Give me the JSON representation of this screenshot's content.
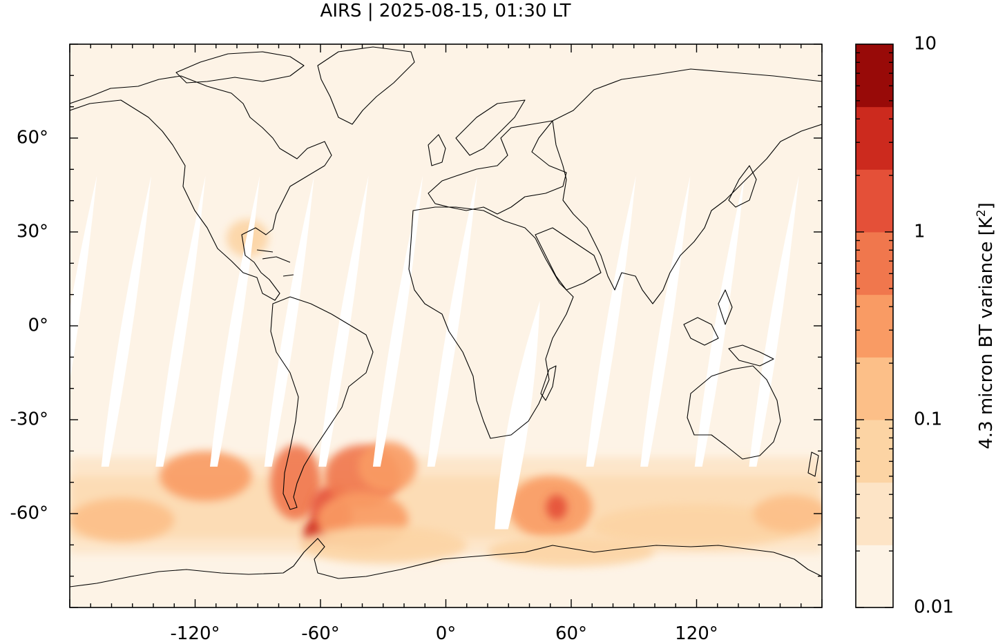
{
  "title": "AIRS | 2025-08-15, 01:30 LT",
  "map": {
    "projection": "plate-carree",
    "lon_range": [
      -180,
      180
    ],
    "lat_range": [
      -90,
      90
    ],
    "x_ticks": [
      {
        "value": -120,
        "label": "-120°"
      },
      {
        "value": -60,
        "label": "-60°"
      },
      {
        "value": 0,
        "label": "0°"
      },
      {
        "value": 60,
        "label": "60°"
      },
      {
        "value": 120,
        "label": "120°"
      }
    ],
    "y_ticks": [
      {
        "value": 60,
        "label": "60°"
      },
      {
        "value": 30,
        "label": "30°"
      },
      {
        "value": 0,
        "label": "0°"
      },
      {
        "value": -30,
        "label": "-30°"
      },
      {
        "value": -60,
        "label": "-60°"
      }
    ],
    "background_color": "#fdf3e6",
    "coastline_color": "#000000",
    "swath_gaps": [
      {
        "lat_south": -45,
        "lat_north": 48,
        "lon_south": -190,
        "lon_north": -167,
        "width_deg": 9
      },
      {
        "lat_south": -45,
        "lat_north": 48,
        "lon_south": -164,
        "lon_north": -141,
        "width_deg": 9
      },
      {
        "lat_south": -45,
        "lat_north": 48,
        "lon_south": -138,
        "lon_north": -115,
        "width_deg": 9
      },
      {
        "lat_south": -45,
        "lat_north": 48,
        "lon_south": -112,
        "lon_north": -89,
        "width_deg": 9
      },
      {
        "lat_south": -45,
        "lat_north": 48,
        "lon_south": -86,
        "lon_north": -63,
        "width_deg": 9
      },
      {
        "lat_south": -45,
        "lat_north": 48,
        "lon_south": -60,
        "lon_north": -37,
        "width_deg": 9
      },
      {
        "lat_south": -45,
        "lat_north": 48,
        "lon_south": -34,
        "lon_north": -11,
        "width_deg": 9
      },
      {
        "lat_south": -45,
        "lat_north": 48,
        "lon_south": -8,
        "lon_north": 15,
        "width_deg": 9
      },
      {
        "lat_south": -65,
        "lat_north": 8,
        "lon_south": 25,
        "lon_north": 45,
        "width_deg": 16
      },
      {
        "lat_south": -45,
        "lat_north": 48,
        "lon_south": 68,
        "lon_north": 91,
        "width_deg": 9
      },
      {
        "lat_south": -45,
        "lat_north": 48,
        "lon_south": 94,
        "lon_north": 117,
        "width_deg": 9
      },
      {
        "lat_south": -45,
        "lat_north": 48,
        "lon_south": 120,
        "lon_north": 143,
        "width_deg": 9
      },
      {
        "lat_south": -45,
        "lat_north": 48,
        "lon_south": 146,
        "lon_north": 169,
        "width_deg": 9
      }
    ],
    "variance_hotspots": [
      {
        "lon": -115,
        "lat": -48,
        "rx": 22,
        "ry": 8,
        "value": 0.4
      },
      {
        "lon": -155,
        "lat": -62,
        "rx": 25,
        "ry": 7,
        "value": 0.2
      },
      {
        "lon": -72,
        "lat": -50,
        "rx": 12,
        "ry": 12,
        "value": 0.6
      },
      {
        "lon": -55,
        "lat": -60,
        "rx": 10,
        "ry": 9,
        "value": 1.5
      },
      {
        "lon": -62,
        "lat": -66,
        "rx": 6,
        "ry": 4,
        "value": 3.0
      },
      {
        "lon": -40,
        "lat": -48,
        "rx": 18,
        "ry": 10,
        "value": 0.6
      },
      {
        "lon": -28,
        "lat": -45,
        "rx": 14,
        "ry": 8,
        "value": 0.4
      },
      {
        "lon": -40,
        "lat": -62,
        "rx": 22,
        "ry": 9,
        "value": 0.3
      },
      {
        "lon": 50,
        "lat": -58,
        "rx": 20,
        "ry": 10,
        "value": 0.4
      },
      {
        "lon": 53,
        "lat": -58,
        "rx": 5,
        "ry": 4,
        "value": 1.0
      },
      {
        "lon": 120,
        "lat": -64,
        "rx": 50,
        "ry": 7,
        "value": 0.08
      },
      {
        "lon": 165,
        "lat": -60,
        "rx": 18,
        "ry": 6,
        "value": 0.1
      },
      {
        "lon": -95,
        "lat": 28,
        "rx": 10,
        "ry": 6,
        "value": 0.05
      },
      {
        "lon": -30,
        "lat": -70,
        "rx": 40,
        "ry": 6,
        "value": 0.06
      },
      {
        "lon": 60,
        "lat": -72,
        "rx": 40,
        "ry": 5,
        "value": 0.05
      }
    ]
  },
  "colorbar": {
    "label_main": "4.3 micron BT variance [K",
    "label_sup": "2",
    "label_close": "]",
    "scale": "log",
    "range": [
      0.01,
      10
    ],
    "tick_labels": [
      {
        "value": 10,
        "label": "10"
      },
      {
        "value": 1,
        "label": "1"
      },
      {
        "value": 0.1,
        "label": "0.1"
      },
      {
        "value": 0.01,
        "label": "0.01"
      }
    ],
    "colors": [
      "#fdf3e6",
      "#fde4c6",
      "#fcd4a4",
      "#fcbf88",
      "#f99b64",
      "#f0774d",
      "#e45038",
      "#cc2a1e",
      "#980a08"
    ]
  }
}
